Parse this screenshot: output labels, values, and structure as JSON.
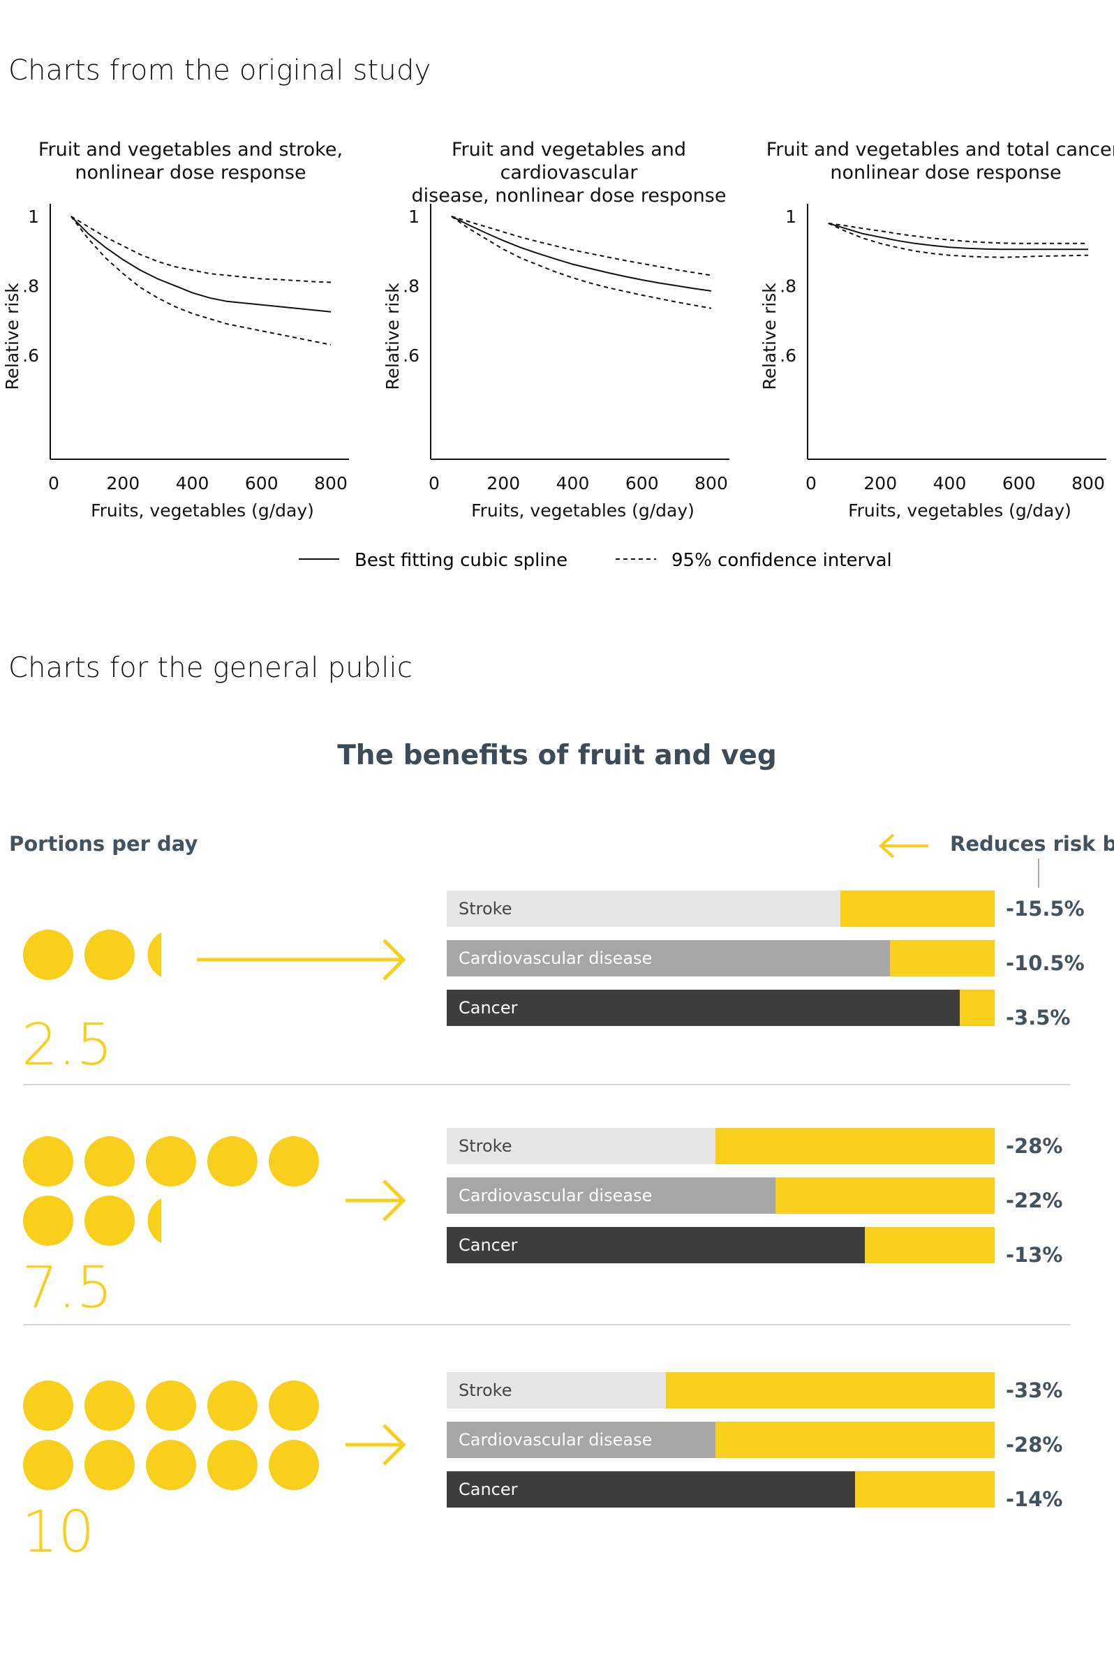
{
  "sections": {
    "original": "Charts from the original study",
    "public": "Charts for the general public"
  },
  "chart_data": [
    {
      "type": "line",
      "title": "Fruit and vegetables and stroke, nonlinear dose response",
      "title_lines": [
        "Fruit and vegetables and stroke,",
        "nonlinear dose response"
      ],
      "xlabel": "Fruits, vegetables (g/day)",
      "ylabel": "Relative risk",
      "xlim": [
        0,
        850
      ],
      "ylim": [
        0.3,
        1.0
      ],
      "xticks": [
        0,
        200,
        400,
        600,
        800
      ],
      "xtick_labels": [
        "0",
        "200",
        "400",
        "600",
        "800"
      ],
      "yticks": [
        1.0,
        0.8,
        0.6
      ],
      "ytick_labels": [
        "1",
        ".8",
        ".6"
      ],
      "x": [
        50,
        100,
        150,
        200,
        250,
        300,
        350,
        400,
        450,
        500,
        550,
        600,
        650,
        700,
        750,
        800
      ],
      "series": [
        {
          "name": "Best fitting cubic spline",
          "style": "solid",
          "values": [
            1.0,
            0.95,
            0.91,
            0.875,
            0.845,
            0.82,
            0.8,
            0.78,
            0.765,
            0.755,
            0.75,
            0.745,
            0.74,
            0.735,
            0.73,
            0.725
          ]
        },
        {
          "name": "95% confidence interval (upper)",
          "style": "dashed",
          "values": [
            1.0,
            0.97,
            0.94,
            0.915,
            0.89,
            0.87,
            0.855,
            0.845,
            0.835,
            0.83,
            0.825,
            0.82,
            0.818,
            0.815,
            0.812,
            0.81
          ]
        },
        {
          "name": "95% confidence interval (lower)",
          "style": "dashed",
          "values": [
            1.0,
            0.935,
            0.88,
            0.835,
            0.795,
            0.765,
            0.74,
            0.72,
            0.705,
            0.69,
            0.68,
            0.67,
            0.66,
            0.65,
            0.64,
            0.63
          ]
        }
      ]
    },
    {
      "type": "line",
      "title": "Fruit and vegetables and cardiovascular disease, nonlinear dose response",
      "title_lines": [
        "Fruit and vegetables and cardiovascular",
        "disease, nonlinear dose response"
      ],
      "xlabel": "Fruits, vegetables (g/day)",
      "ylabel": "Relative risk",
      "xlim": [
        0,
        850
      ],
      "ylim": [
        0.3,
        1.0
      ],
      "xticks": [
        0,
        200,
        400,
        600,
        800
      ],
      "xtick_labels": [
        "0",
        "200",
        "400",
        "600",
        "800"
      ],
      "yticks": [
        1.0,
        0.8,
        0.6
      ],
      "ytick_labels": [
        "1",
        ".8",
        ".6"
      ],
      "x": [
        50,
        100,
        150,
        200,
        250,
        300,
        350,
        400,
        450,
        500,
        550,
        600,
        650,
        700,
        750,
        800
      ],
      "series": [
        {
          "name": "Best fitting cubic spline",
          "style": "solid",
          "values": [
            1.0,
            0.975,
            0.952,
            0.93,
            0.91,
            0.893,
            0.877,
            0.862,
            0.85,
            0.838,
            0.827,
            0.817,
            0.808,
            0.8,
            0.792,
            0.785
          ]
        },
        {
          "name": "95% confidence interval (upper)",
          "style": "dashed",
          "values": [
            1.0,
            0.985,
            0.97,
            0.955,
            0.94,
            0.927,
            0.915,
            0.903,
            0.893,
            0.883,
            0.873,
            0.864,
            0.855,
            0.846,
            0.838,
            0.83
          ]
        },
        {
          "name": "95% confidence interval (lower)",
          "style": "dashed",
          "values": [
            1.0,
            0.965,
            0.935,
            0.905,
            0.88,
            0.86,
            0.84,
            0.823,
            0.808,
            0.795,
            0.784,
            0.773,
            0.763,
            0.753,
            0.744,
            0.735
          ]
        }
      ]
    },
    {
      "type": "line",
      "title": "Fruit and vegetables and total cancer, nonlinear dose response",
      "title_lines": [
        "Fruit and vegetables and total cancer,",
        "nonlinear dose response"
      ],
      "xlabel": "Fruits, vegetables (g/day)",
      "ylabel": "Relative risk",
      "xlim": [
        0,
        850
      ],
      "ylim": [
        0.3,
        1.0
      ],
      "xticks": [
        0,
        200,
        400,
        600,
        800
      ],
      "xtick_labels": [
        "0",
        "200",
        "400",
        "600",
        "800"
      ],
      "yticks": [
        1.0,
        0.8,
        0.6
      ],
      "ytick_labels": [
        "1",
        ".8",
        ".6"
      ],
      "x": [
        50,
        100,
        150,
        200,
        250,
        300,
        350,
        400,
        450,
        500,
        550,
        600,
        650,
        700,
        750,
        800
      ],
      "series": [
        {
          "name": "Best fitting cubic spline",
          "style": "solid",
          "values": [
            0.98,
            0.965,
            0.95,
            0.94,
            0.93,
            0.922,
            0.916,
            0.911,
            0.908,
            0.906,
            0.905,
            0.905,
            0.905,
            0.905,
            0.905,
            0.905
          ]
        },
        {
          "name": "95% confidence interval (upper)",
          "style": "dashed",
          "values": [
            0.98,
            0.973,
            0.965,
            0.958,
            0.95,
            0.943,
            0.937,
            0.932,
            0.928,
            0.925,
            0.923,
            0.922,
            0.922,
            0.922,
            0.922,
            0.922
          ]
        },
        {
          "name": "95% confidence interval (lower)",
          "style": "dashed",
          "values": [
            0.98,
            0.957,
            0.937,
            0.922,
            0.91,
            0.9,
            0.893,
            0.888,
            0.885,
            0.883,
            0.882,
            0.883,
            0.885,
            0.886,
            0.887,
            0.888
          ]
        }
      ]
    },
    {
      "type": "bar",
      "orientation": "horizontal-stacked",
      "title": "The benefits of fruit and veg",
      "groups": [
        {
          "portions": 2.5,
          "portions_label": "2.5",
          "bars": [
            {
              "category": "Stroke",
              "reduction": 15.5,
              "value_label": "-15.5%"
            },
            {
              "category": "Cardiovascular disease",
              "reduction": 10.5,
              "value_label": "-10.5%"
            },
            {
              "category": "Cancer",
              "reduction": 3.5,
              "value_label": "-3.5%"
            }
          ]
        },
        {
          "portions": 7.5,
          "portions_label": "7.5",
          "bars": [
            {
              "category": "Stroke",
              "reduction": 28,
              "value_label": "-28%"
            },
            {
              "category": "Cardiovascular disease",
              "reduction": 22,
              "value_label": "-22%"
            },
            {
              "category": "Cancer",
              "reduction": 13,
              "value_label": "-13%"
            }
          ]
        },
        {
          "portions": 10,
          "portions_label": "10",
          "bars": [
            {
              "category": "Stroke",
              "reduction": 33,
              "value_label": "-33%"
            },
            {
              "category": "Cardiovascular disease",
              "reduction": 28,
              "value_label": "-28%"
            },
            {
              "category": "Cancer",
              "reduction": 14,
              "value_label": "-14%"
            }
          ]
        }
      ]
    }
  ],
  "legend": {
    "solid": "Best fitting cubic spline",
    "dashed": "95% confidence interval"
  },
  "infographic": {
    "portions_header": "Portions per day",
    "reduces_header": "Reduces risk by"
  },
  "colors": {
    "accent_yellow": "#f9cf1c",
    "stroke_bar": "#e6e6e6",
    "cvd_bar": "#a6a6a4",
    "cancer_bar": "#3d3d3b",
    "dark_text": "#44525e",
    "stroke_label": "#444444",
    "light_label": "#ffffff"
  }
}
